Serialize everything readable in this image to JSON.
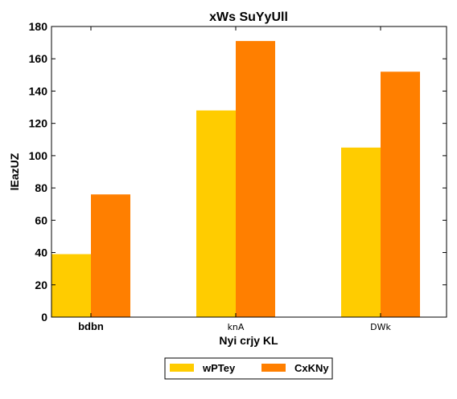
{
  "chart_data": {
    "type": "bar",
    "title": "xWs SuYyUll",
    "xlabel": "Nyi  crjy  KL",
    "ylabel": "lEazUZ",
    "categories": [
      "bdbn",
      "knA",
      "DWk"
    ],
    "series": [
      {
        "name": "wPTey",
        "values": [
          39,
          128,
          105
        ],
        "color": "#ffcc00"
      },
      {
        "name": "CxKNy",
        "values": [
          76,
          171,
          152
        ],
        "color": "#ff7f00"
      }
    ],
    "ylim": [
      0,
      180
    ],
    "yticks": [
      0,
      20,
      40,
      60,
      80,
      100,
      120,
      140,
      160,
      180
    ],
    "grid": false,
    "legend_position": "bottom-center"
  }
}
